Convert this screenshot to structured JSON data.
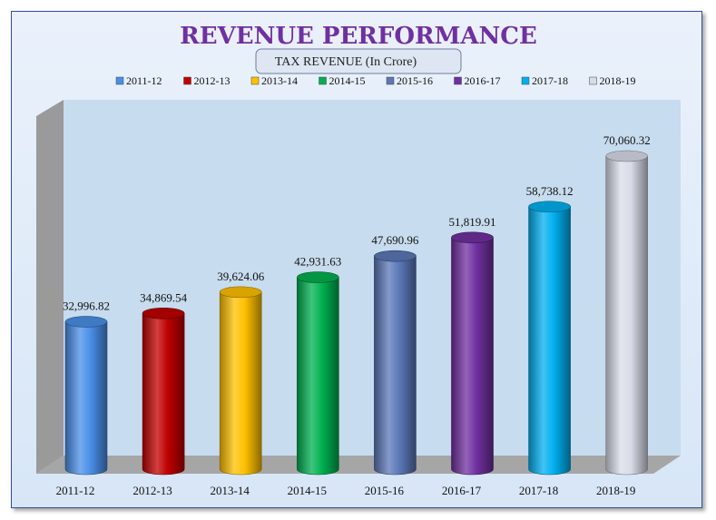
{
  "chart_data": {
    "type": "bar",
    "title": "REVENUE PERFORMANCE",
    "subtitle": "TAX REVENUE (In Crore)",
    "categories": [
      "2011-12",
      "2012-13",
      "2013-14",
      "2014-15",
      "2015-16",
      "2016-17",
      "2017-18",
      "2018-19"
    ],
    "values": [
      32996.82,
      34869.54,
      39624.06,
      42931.63,
      47690.96,
      51819.91,
      58738.12,
      70060.32
    ],
    "value_labels": [
      "32,996.82",
      "34,869.54",
      "39,624.06",
      "42,931.63",
      "47,690.96",
      "51,819.91",
      "58,738.12",
      "70,060.32"
    ],
    "colors": [
      "#4a8fe8",
      "#c00000",
      "#ffc000",
      "#00b050",
      "#5b78b8",
      "#7030a0",
      "#00b0f0",
      "#d9dce8"
    ],
    "legend": [
      "2011-12",
      "2012-13",
      "2013-14",
      "2014-15",
      "2015-16",
      "2016-17",
      "2017-18",
      "2018-19"
    ],
    "legend_position": "top",
    "bar_shape": "3d-cylinder",
    "ylim": [
      0,
      75000
    ],
    "grid": false
  }
}
